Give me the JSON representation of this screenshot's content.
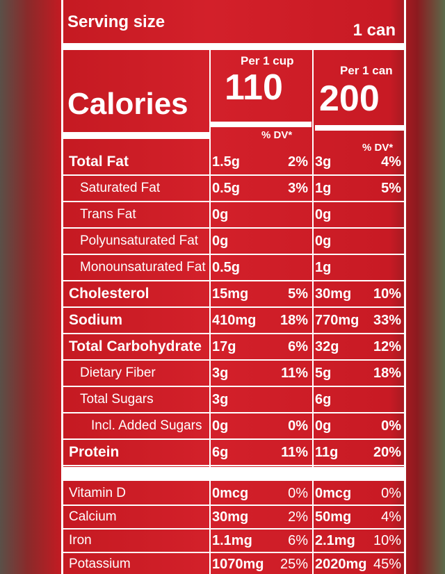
{
  "serving": {
    "label": "Serving size",
    "value": "1 can"
  },
  "columns": [
    {
      "heading": "Per 1 cup",
      "calories": "110",
      "dv_heading": "% DV*"
    },
    {
      "heading": "Per 1 can",
      "calories": "200",
      "dv_heading": "% DV*"
    }
  ],
  "calories_label": "Calories",
  "nutrients": [
    {
      "name": "Total Fat",
      "bold": true,
      "cup": "1.5g",
      "cup_dv": "2%",
      "can": "3g",
      "can_dv": "4%"
    },
    {
      "name": "Saturated Fat",
      "indent": 1,
      "cup": "0.5g",
      "cup_dv": "3%",
      "can": "1g",
      "can_dv": "5%"
    },
    {
      "name": "Trans Fat",
      "indent": 1,
      "cup": "0g",
      "can": "0g"
    },
    {
      "name": "Polyunsaturated Fat",
      "indent": 1,
      "cup": "0g",
      "can": "0g"
    },
    {
      "name": "Monounsaturated Fat",
      "indent": 1,
      "cup": "0.5g",
      "can": "1g"
    },
    {
      "name": "Cholesterol",
      "bold": true,
      "cup": "15mg",
      "cup_dv": "5%",
      "can": "30mg",
      "can_dv": "10%"
    },
    {
      "name": "Sodium",
      "bold": true,
      "cup": "410mg",
      "cup_dv": "18%",
      "can": "770mg",
      "can_dv": "33%"
    },
    {
      "name": "Total Carbohydrate",
      "bold": true,
      "cup": "17g",
      "cup_dv": "6%",
      "can": "32g",
      "can_dv": "12%"
    },
    {
      "name": "Dietary Fiber",
      "indent": 1,
      "cup": "3g",
      "cup_dv": "11%",
      "can": "5g",
      "can_dv": "18%"
    },
    {
      "name": "Total Sugars",
      "indent": 1,
      "cup": "3g",
      "can": "6g"
    },
    {
      "name": "Incl. Added Sugars",
      "indent": 2,
      "cup": "0g",
      "cup_dv": "0%",
      "can": "0g",
      "can_dv": "0%"
    },
    {
      "name": "Protein",
      "bold": true,
      "cup": "6g",
      "cup_dv": "11%",
      "can": "11g",
      "can_dv": "20%"
    }
  ],
  "minerals": [
    {
      "name": "Vitamin D",
      "cup": "0mcg",
      "cup_dv": "0%",
      "can": "0mcg",
      "can_dv": "0%"
    },
    {
      "name": "Calcium",
      "cup": "30mg",
      "cup_dv": "2%",
      "can": "50mg",
      "can_dv": "4%"
    },
    {
      "name": "Iron",
      "cup": "1.1mg",
      "cup_dv": "6%",
      "can": "2.1mg",
      "can_dv": "10%"
    },
    {
      "name": "Potassium",
      "cup": "1070mg",
      "cup_dv": "25%",
      "can": "2020mg",
      "can_dv": "45%"
    }
  ]
}
